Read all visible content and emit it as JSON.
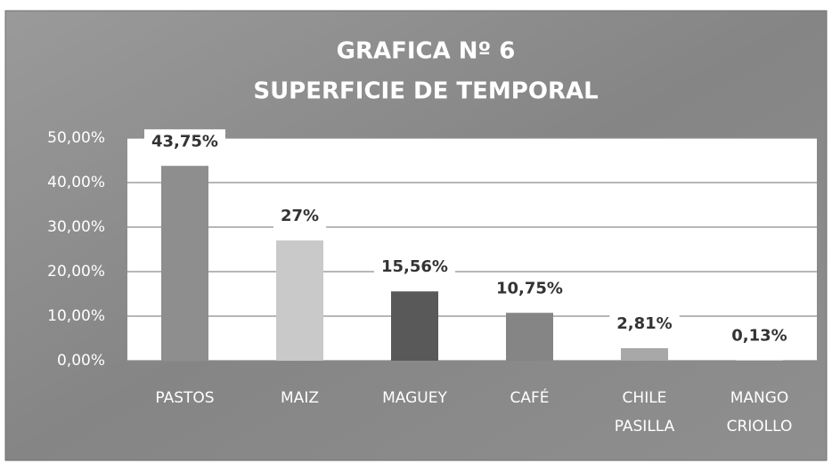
{
  "chart_data": {
    "type": "bar",
    "title": "GRAFICA Nº 6",
    "subtitle": "SUPERFICIE DE TEMPORAL",
    "categories": [
      "PASTOS",
      "MAIZ",
      "MAGUEY",
      "CAFÉ",
      "CHILE PASILLA",
      "MANGO CRIOLLO"
    ],
    "values": [
      43.75,
      27,
      15.56,
      10.75,
      2.81,
      0.13
    ],
    "value_labels": [
      "43,75%",
      "27%",
      "15,56%",
      "10,75%",
      "2,81%",
      "0,13%"
    ],
    "colors": [
      "#8e8e8e",
      "#c9c9c9",
      "#595959",
      "#858585",
      "#a8a8a8",
      "#d0d0d0"
    ],
    "ylim": [
      0,
      50
    ],
    "yticks": [
      {
        "value": 0,
        "label": "0,00%"
      },
      {
        "value": 10,
        "label": "10,00%"
      },
      {
        "value": 20,
        "label": "20,00%"
      },
      {
        "value": 30,
        "label": "30,00%"
      },
      {
        "value": 40,
        "label": "40,00%"
      },
      {
        "value": 50,
        "label": "50,00%"
      }
    ],
    "grid": true
  }
}
